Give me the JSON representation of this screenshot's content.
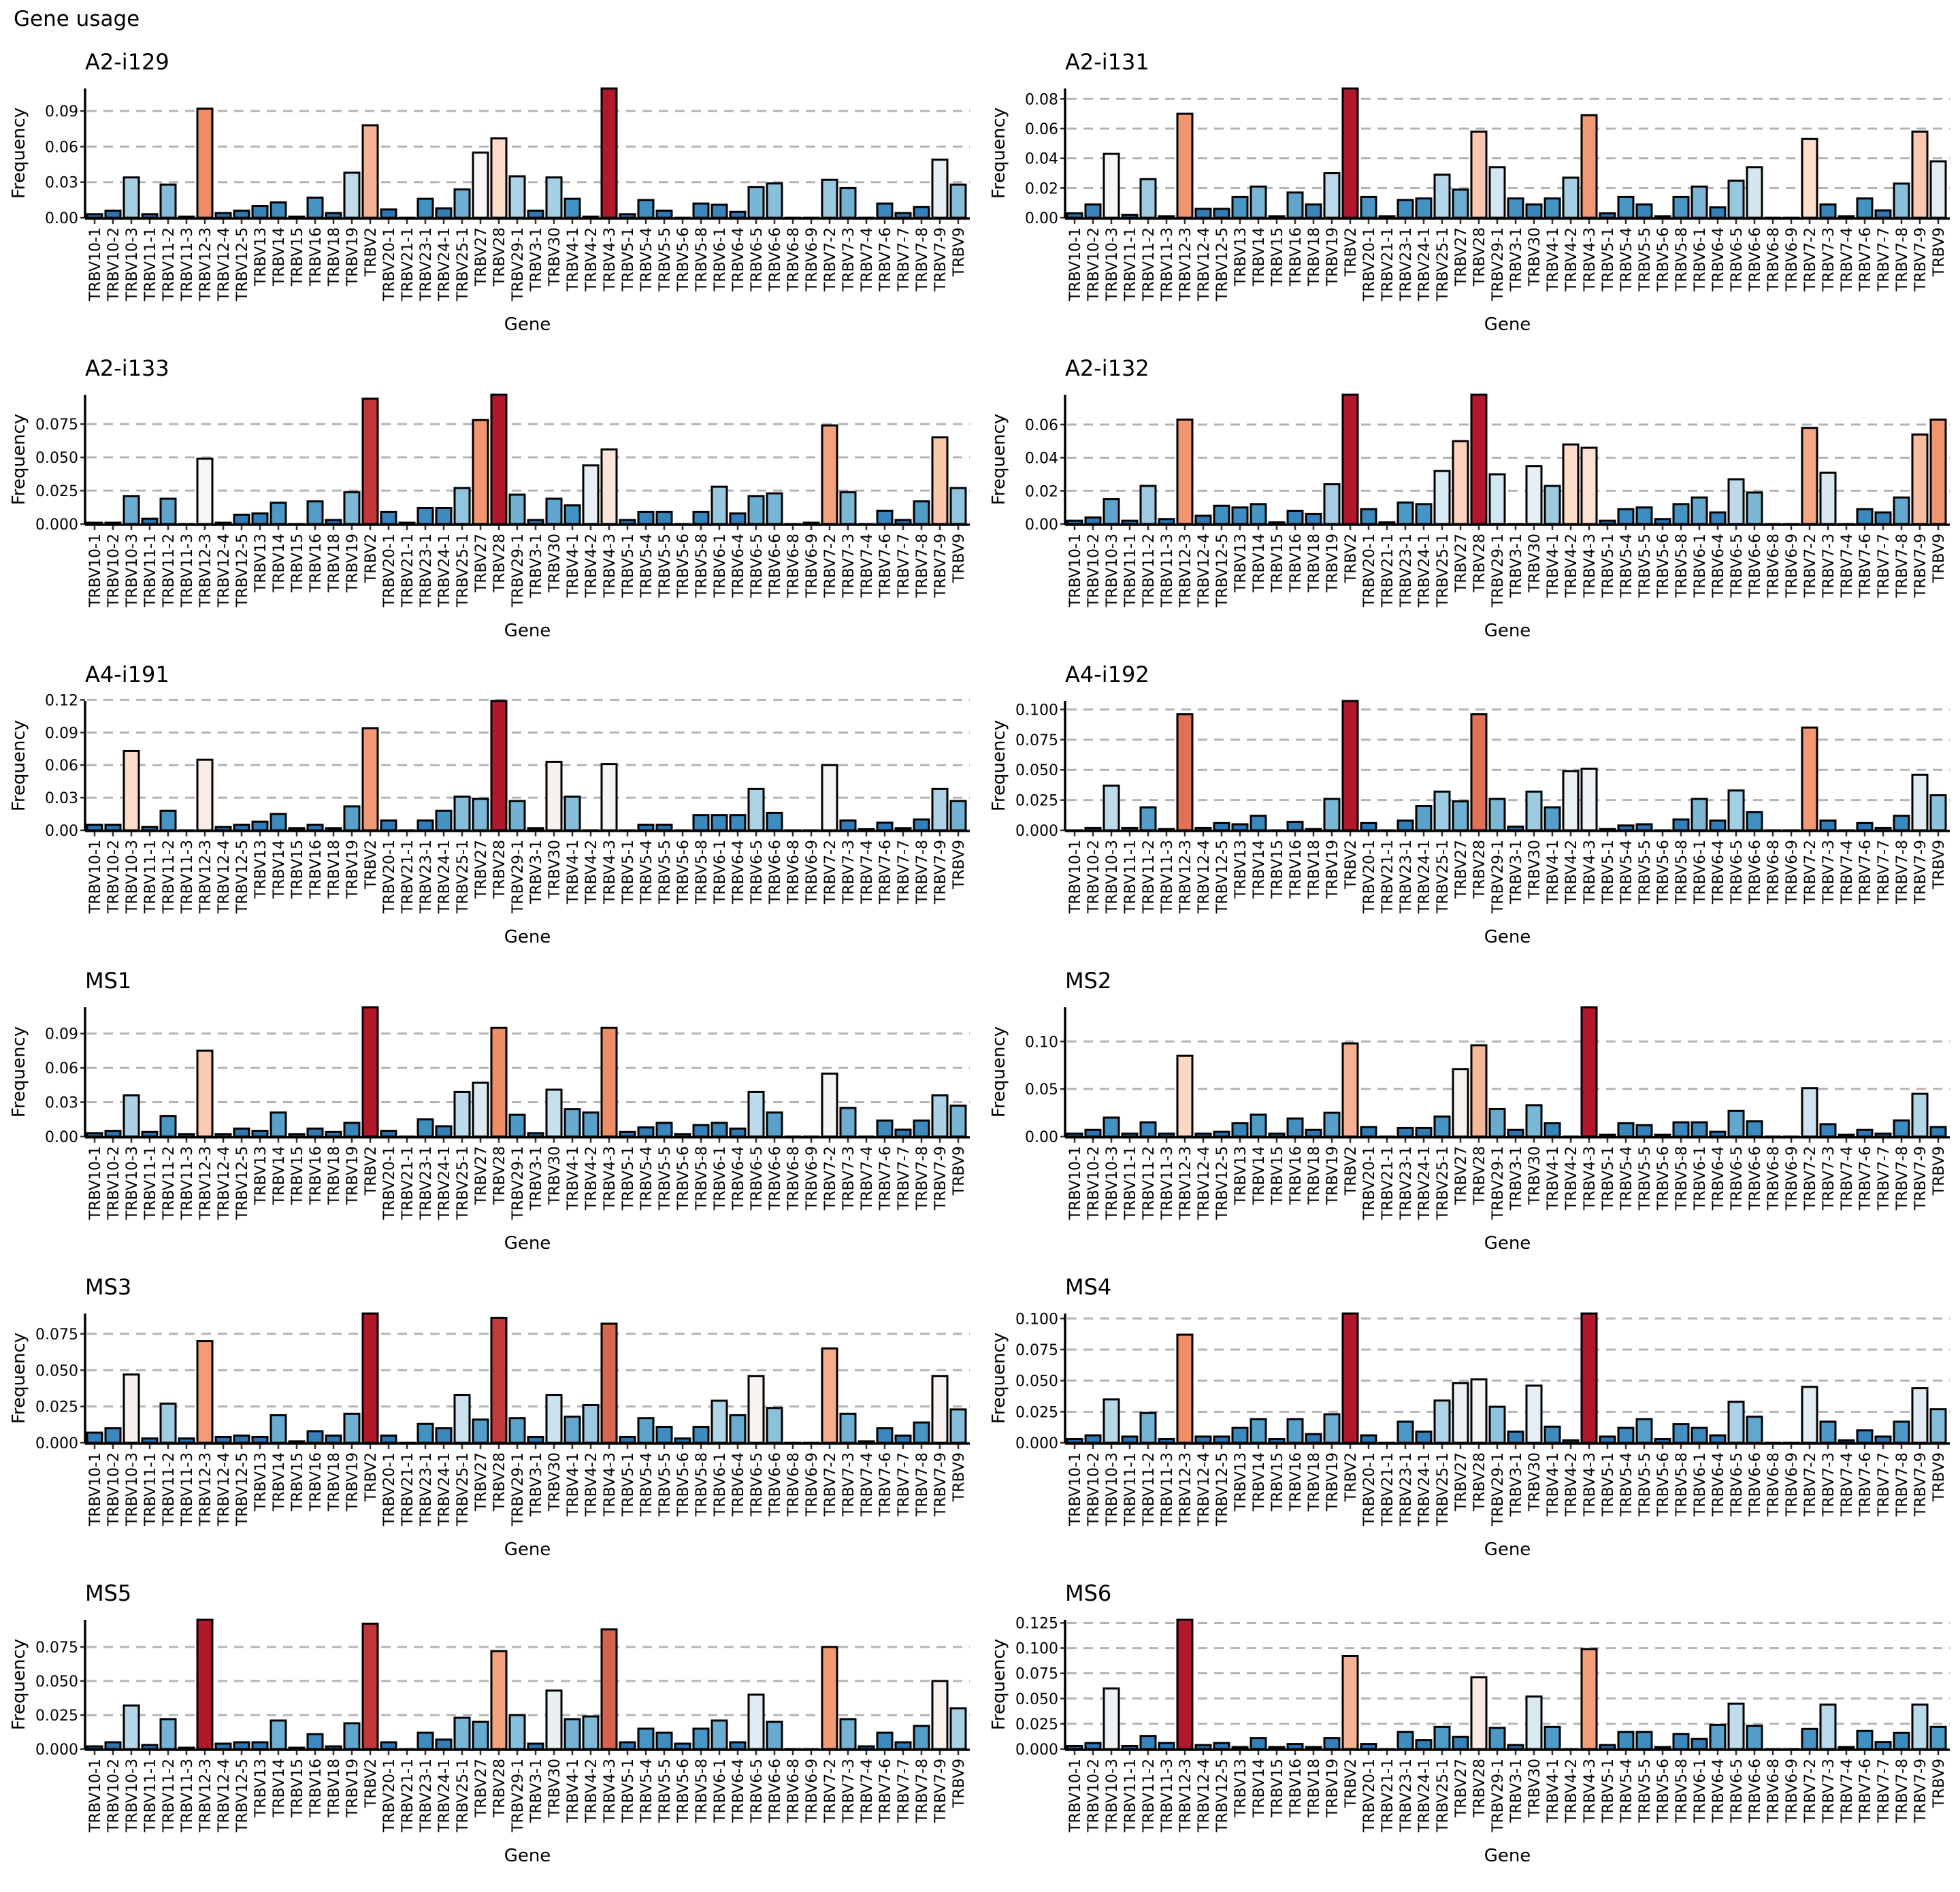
{
  "title": "Gene usage",
  "colors": {
    "low": "#2166ac",
    "mid": "#f7f7f7",
    "high": "#b2182b",
    "grid": "#b4b4b4",
    "bar_outline": "#000000"
  },
  "genes": [
    "TRBV10-1",
    "TRBV10-2",
    "TRBV10-3",
    "TRBV11-1",
    "TRBV11-2",
    "TRBV11-3",
    "TRBV12-3",
    "TRBV12-4",
    "TRBV12-5",
    "TRBV13",
    "TRBV14",
    "TRBV15",
    "TRBV16",
    "TRBV18",
    "TRBV19",
    "TRBV2",
    "TRBV20-1",
    "TRBV21-1",
    "TRBV23-1",
    "TRBV24-1",
    "TRBV25-1",
    "TRBV27",
    "TRBV28",
    "TRBV29-1",
    "TRBV3-1",
    "TRBV30",
    "TRBV4-1",
    "TRBV4-2",
    "TRBV4-3",
    "TRBV5-1",
    "TRBV5-4",
    "TRBV5-5",
    "TRBV5-6",
    "TRBV5-8",
    "TRBV6-1",
    "TRBV6-4",
    "TRBV6-5",
    "TRBV6-6",
    "TRBV6-8",
    "TRBV6-9",
    "TRBV7-2",
    "TRBV7-3",
    "TRBV7-4",
    "TRBV7-6",
    "TRBV7-7",
    "TRBV7-8",
    "TRBV7-9",
    "TRBV9"
  ],
  "chart_data": [
    {
      "type": "bar",
      "title": "A2-i129",
      "xlabel": "Gene",
      "ylabel": "Frequency",
      "grid": "horizontal dashed",
      "yticks": [
        "0.00",
        "0.03",
        "0.06",
        "0.09"
      ],
      "values": [
        0.003,
        0.006,
        0.034,
        0.003,
        0.028,
        0.001,
        0.092,
        0.004,
        0.006,
        0.01,
        0.013,
        0.001,
        0.017,
        0.004,
        0.038,
        0.078,
        0.007,
        0,
        0.016,
        0.008,
        0.024,
        0.055,
        0.067,
        0.035,
        0.006,
        0.034,
        0.016,
        0.001,
        0.109,
        0.003,
        0.015,
        0.006,
        0,
        0.012,
        0.011,
        0.005,
        0.026,
        0.029,
        0,
        0,
        0.032,
        0.025,
        0,
        0.012,
        0.004,
        0.009,
        0.049,
        0.028
      ]
    },
    {
      "type": "bar",
      "title": "A2-i131",
      "xlabel": "Gene",
      "ylabel": "Frequency",
      "grid": "horizontal dashed",
      "yticks": [
        "0.00",
        "0.02",
        "0.04",
        "0.06",
        "0.08"
      ],
      "values": [
        0.003,
        0.009,
        0.043,
        0.002,
        0.026,
        0.001,
        0.07,
        0.006,
        0.006,
        0.014,
        0.021,
        0.001,
        0.017,
        0.009,
        0.03,
        0.087,
        0.014,
        0.001,
        0.012,
        0.013,
        0.029,
        0.019,
        0.058,
        0.034,
        0.013,
        0.009,
        0.013,
        0.027,
        0.069,
        0.003,
        0.014,
        0.009,
        0.001,
        0.014,
        0.021,
        0.007,
        0.025,
        0.034,
        0,
        0,
        0.053,
        0.009,
        0.001,
        0.013,
        0.005,
        0.023,
        0.058,
        0.038
      ]
    },
    {
      "type": "bar",
      "title": "A2-i133",
      "xlabel": "Gene",
      "ylabel": "Frequency",
      "grid": "horizontal dashed",
      "yticks": [
        "0.000",
        "0.025",
        "0.050",
        "0.075"
      ],
      "values": [
        0.001,
        0.001,
        0.021,
        0.004,
        0.019,
        0,
        0.049,
        0.001,
        0.007,
        0.008,
        0.016,
        0,
        0.017,
        0.003,
        0.024,
        0.094,
        0.009,
        0.001,
        0.012,
        0.012,
        0.027,
        0.078,
        0.097,
        0.022,
        0.003,
        0.019,
        0.014,
        0.044,
        0.056,
        0.003,
        0.009,
        0.009,
        0,
        0.009,
        0.028,
        0.008,
        0.021,
        0.023,
        0,
        0.001,
        0.074,
        0.024,
        0,
        0.01,
        0.003,
        0.017,
        0.065,
        0.027
      ]
    },
    {
      "type": "bar",
      "title": "A2-i132",
      "xlabel": "Gene",
      "ylabel": "Frequency",
      "grid": "horizontal dashed",
      "yticks": [
        "0.00",
        "0.02",
        "0.04",
        "0.06"
      ],
      "values": [
        0.002,
        0.004,
        0.015,
        0.002,
        0.023,
        0.003,
        0.063,
        0.005,
        0.011,
        0.01,
        0.012,
        0.001,
        0.008,
        0.006,
        0.024,
        0.078,
        0.009,
        0.001,
        0.013,
        0.012,
        0.032,
        0.05,
        0.078,
        0.03,
        0,
        0.035,
        0.023,
        0.048,
        0.046,
        0.002,
        0.009,
        0.01,
        0.003,
        0.012,
        0.016,
        0.007,
        0.027,
        0.019,
        0,
        0,
        0.058,
        0.031,
        0,
        0.009,
        0.007,
        0.016,
        0.054,
        0.063
      ]
    },
    {
      "type": "bar",
      "title": "A4-i191",
      "xlabel": "Gene",
      "ylabel": "Frequency",
      "grid": "horizontal dashed",
      "yticks": [
        "0.00",
        "0.03",
        "0.06",
        "0.09",
        "0.12"
      ],
      "values": [
        0.005,
        0.005,
        0.073,
        0.003,
        0.018,
        0,
        0.065,
        0.003,
        0.005,
        0.008,
        0.015,
        0.002,
        0.005,
        0.002,
        0.022,
        0.094,
        0.009,
        0,
        0.009,
        0.018,
        0.031,
        0.029,
        0.119,
        0.027,
        0.002,
        0.063,
        0.031,
        0,
        0.061,
        0,
        0.005,
        0.005,
        0,
        0.014,
        0.014,
        0.014,
        0.038,
        0.016,
        0,
        0,
        0.06,
        0.009,
        0.001,
        0.007,
        0.002,
        0.01,
        0.038,
        0.027
      ]
    },
    {
      "type": "bar",
      "title": "A4-i192",
      "xlabel": "Gene",
      "ylabel": "Frequency",
      "grid": "horizontal dashed",
      "yticks": [
        "0.000",
        "0.025",
        "0.050",
        "0.075",
        "0.100"
      ],
      "values": [
        0,
        0.002,
        0.037,
        0.002,
        0.019,
        0.001,
        0.096,
        0.002,
        0.006,
        0.005,
        0.012,
        0,
        0.007,
        0.001,
        0.026,
        0.107,
        0.006,
        0,
        0.008,
        0.02,
        0.032,
        0.024,
        0.096,
        0.026,
        0.003,
        0.032,
        0.019,
        0.049,
        0.051,
        0.001,
        0.004,
        0.005,
        0,
        0.009,
        0.026,
        0.008,
        0.033,
        0.015,
        0,
        0,
        0.085,
        0.008,
        0,
        0.006,
        0.002,
        0.012,
        0.046,
        0.029
      ]
    },
    {
      "type": "bar",
      "title": "MS1",
      "xlabel": "Gene",
      "ylabel": "Frequency",
      "grid": "horizontal dashed",
      "yticks": [
        "0.00",
        "0.03",
        "0.06",
        "0.09"
      ],
      "values": [
        0.003,
        0.005,
        0.036,
        0.004,
        0.018,
        0.002,
        0.075,
        0.002,
        0.007,
        0.005,
        0.021,
        0.002,
        0.007,
        0.004,
        0.012,
        0.113,
        0.005,
        0,
        0.015,
        0.009,
        0.039,
        0.047,
        0.095,
        0.019,
        0.003,
        0.041,
        0.024,
        0.021,
        0.095,
        0.004,
        0.008,
        0.012,
        0.002,
        0.01,
        0.012,
        0.007,
        0.039,
        0.021,
        0,
        0,
        0.055,
        0.025,
        0,
        0.014,
        0.006,
        0.014,
        0.036,
        0.027
      ]
    },
    {
      "type": "bar",
      "title": "MS2",
      "xlabel": "Gene",
      "ylabel": "Frequency",
      "grid": "horizontal dashed",
      "yticks": [
        "0.00",
        "0.05",
        "0.10"
      ],
      "values": [
        0.003,
        0.007,
        0.02,
        0.003,
        0.015,
        0.003,
        0.085,
        0.003,
        0.005,
        0.014,
        0.023,
        0.003,
        0.019,
        0.007,
        0.025,
        0.098,
        0.01,
        0,
        0.009,
        0.009,
        0.021,
        0.071,
        0.096,
        0.029,
        0.007,
        0.033,
        0.014,
        0,
        0.136,
        0.002,
        0.014,
        0.012,
        0.002,
        0.015,
        0.015,
        0.005,
        0.027,
        0.016,
        0,
        0,
        0.051,
        0.013,
        0.002,
        0.007,
        0.003,
        0.017,
        0.045,
        0.01
      ]
    },
    {
      "type": "bar",
      "title": "MS3",
      "xlabel": "Gene",
      "ylabel": "Frequency",
      "grid": "horizontal dashed",
      "yticks": [
        "0.000",
        "0.025",
        "0.050",
        "0.075"
      ],
      "values": [
        0.007,
        0.01,
        0.047,
        0.003,
        0.027,
        0.003,
        0.07,
        0.004,
        0.005,
        0.004,
        0.019,
        0.001,
        0.008,
        0.005,
        0.02,
        0.089,
        0.005,
        0,
        0.013,
        0.01,
        0.033,
        0.016,
        0.086,
        0.017,
        0.004,
        0.033,
        0.018,
        0.026,
        0.082,
        0.004,
        0.017,
        0.011,
        0.003,
        0.011,
        0.029,
        0.019,
        0.046,
        0.024,
        0,
        0,
        0.065,
        0.02,
        0.001,
        0.01,
        0.005,
        0.014,
        0.046,
        0.023
      ]
    },
    {
      "type": "bar",
      "title": "MS4",
      "xlabel": "Gene",
      "ylabel": "Frequency",
      "grid": "horizontal dashed",
      "yticks": [
        "0.000",
        "0.025",
        "0.050",
        "0.075",
        "0.100"
      ],
      "values": [
        0.003,
        0.006,
        0.035,
        0.005,
        0.024,
        0.003,
        0.087,
        0.005,
        0.005,
        0.012,
        0.019,
        0.003,
        0.019,
        0.007,
        0.023,
        0.104,
        0.006,
        0,
        0.017,
        0.009,
        0.034,
        0.048,
        0.051,
        0.029,
        0.009,
        0.046,
        0.013,
        0.002,
        0.104,
        0.005,
        0.012,
        0.019,
        0.003,
        0.015,
        0.012,
        0.006,
        0.033,
        0.021,
        0,
        0,
        0.045,
        0.017,
        0.002,
        0.01,
        0.005,
        0.017,
        0.044,
        0.027
      ]
    },
    {
      "type": "bar",
      "title": "MS5",
      "xlabel": "Gene",
      "ylabel": "Frequency",
      "grid": "horizontal dashed",
      "yticks": [
        "0.000",
        "0.025",
        "0.050",
        "0.075"
      ],
      "values": [
        0.002,
        0.005,
        0.032,
        0.003,
        0.022,
        0.001,
        0.095,
        0.004,
        0.005,
        0.005,
        0.021,
        0.001,
        0.011,
        0.002,
        0.019,
        0.092,
        0.005,
        0,
        0.012,
        0.007,
        0.023,
        0.02,
        0.072,
        0.025,
        0.004,
        0.043,
        0.022,
        0.024,
        0.088,
        0.005,
        0.015,
        0.012,
        0.004,
        0.015,
        0.021,
        0.005,
        0.04,
        0.02,
        0,
        0,
        0.075,
        0.022,
        0.002,
        0.012,
        0.005,
        0.017,
        0.05,
        0.03
      ]
    },
    {
      "type": "bar",
      "title": "MS6",
      "xlabel": "Gene",
      "ylabel": "Frequency",
      "grid": "horizontal dashed",
      "yticks": [
        "0.000",
        "0.025",
        "0.050",
        "0.075",
        "0.100",
        "0.125"
      ],
      "values": [
        0.003,
        0.006,
        0.06,
        0.003,
        0.013,
        0.006,
        0.128,
        0.004,
        0.006,
        0.002,
        0.011,
        0.002,
        0.005,
        0.002,
        0.011,
        0.092,
        0.005,
        0,
        0.017,
        0.009,
        0.022,
        0.012,
        0.071,
        0.021,
        0.004,
        0.052,
        0.022,
        0,
        0.099,
        0.004,
        0.017,
        0.017,
        0.002,
        0.015,
        0.01,
        0.024,
        0.045,
        0.023,
        0,
        0,
        0.02,
        0.044,
        0.002,
        0.018,
        0.007,
        0.016,
        0.044,
        0.022
      ]
    }
  ]
}
